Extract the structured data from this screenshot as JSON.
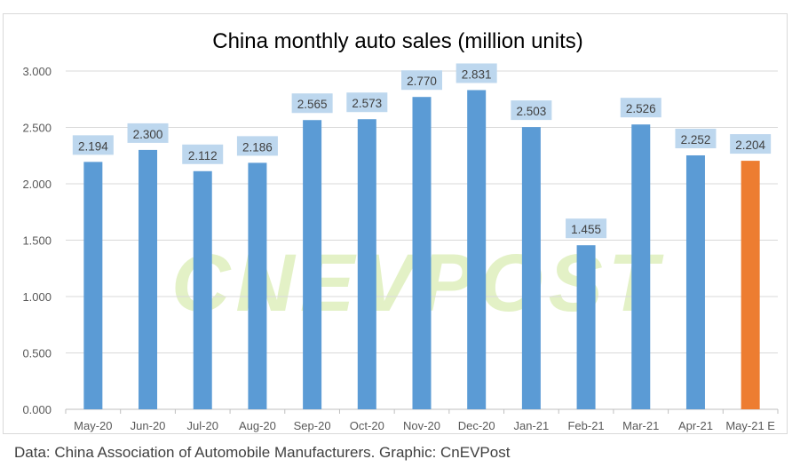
{
  "chart_data": {
    "type": "bar",
    "title": "China monthly auto sales (million units)",
    "categories": [
      "May-20",
      "Jun-20",
      "Jul-20",
      "Aug-20",
      "Sep-20",
      "Oct-20",
      "Nov-20",
      "Dec-20",
      "Jan-21",
      "Feb-21",
      "Mar-21",
      "Apr-21",
      "May-21 E"
    ],
    "values": [
      2.194,
      2.3,
      2.112,
      2.186,
      2.565,
      2.573,
      2.77,
      2.831,
      2.503,
      1.455,
      2.526,
      2.252,
      2.204
    ],
    "data_labels": [
      "2.194",
      "2.300",
      "2.112",
      "2.186",
      "2.565",
      "2.573",
      "2.770",
      "2.831",
      "2.503",
      "1.455",
      "2.526",
      "2.252",
      "2.204"
    ],
    "ylim": [
      0,
      3
    ],
    "yticks": [
      "0.000",
      "0.500",
      "1.000",
      "1.500",
      "2.000",
      "2.500",
      "3.000"
    ],
    "xlabel": "",
    "ylabel": "",
    "grid": true,
    "legend": "none",
    "colors": {
      "actual": "#5b9bd5",
      "estimate": "#ed7d31",
      "label_bg": "#bdd7ee",
      "grid": "#d9d9d9"
    },
    "watermark": "CNEVPOST"
  },
  "footer": "Data: China Association of Automobile Manufacturers. Graphic: CnEVPost"
}
